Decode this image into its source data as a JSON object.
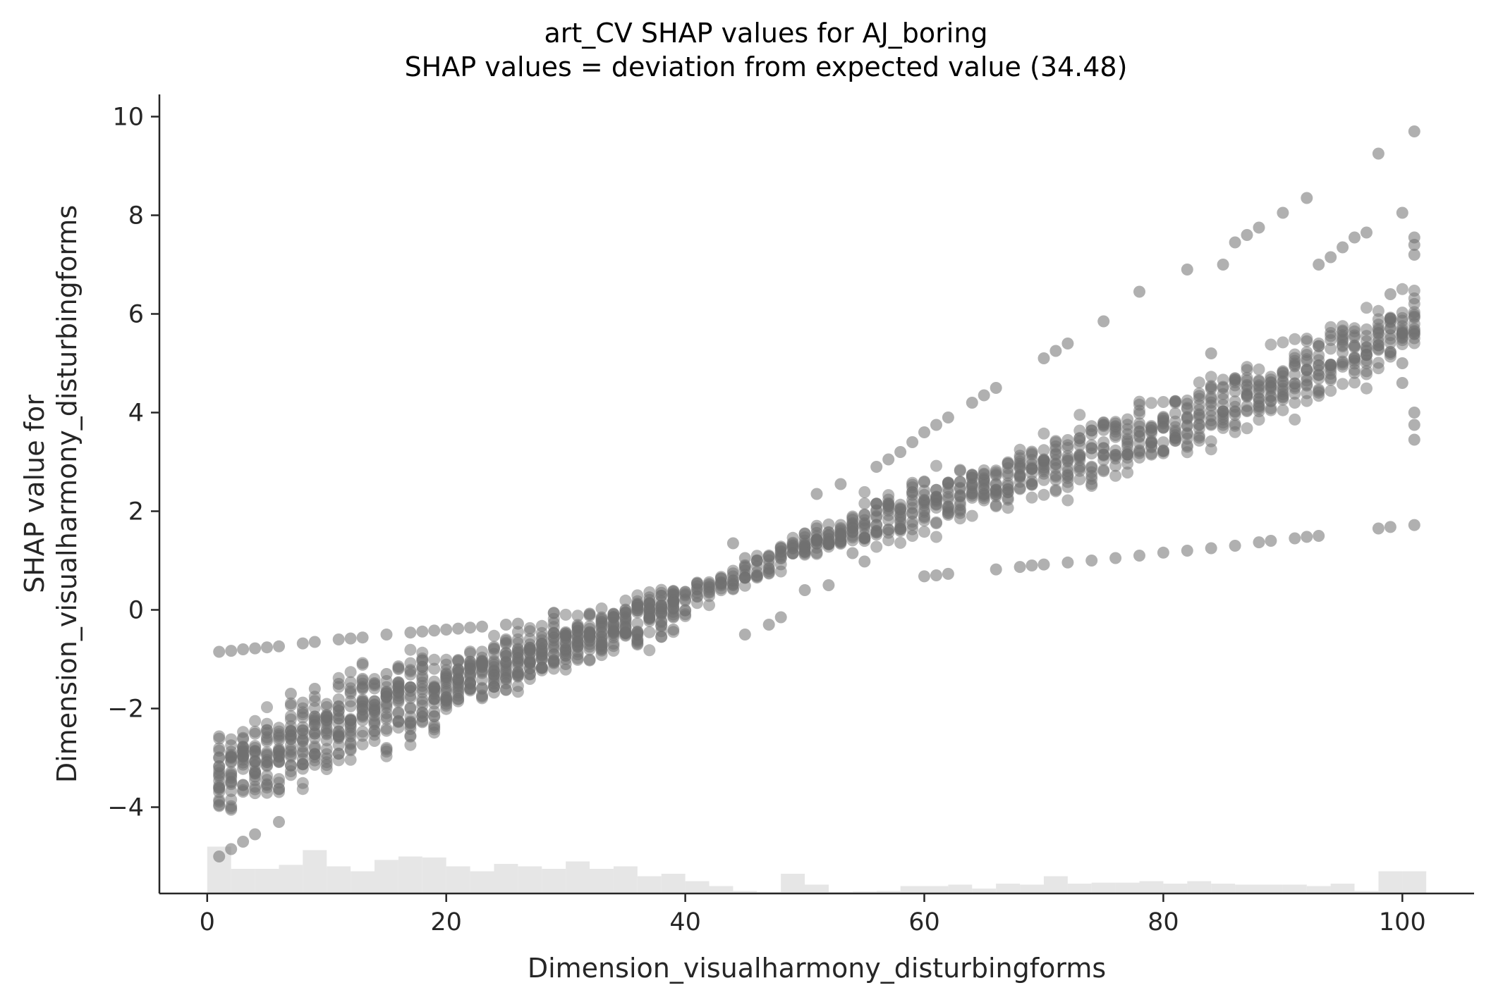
{
  "chart_data": {
    "type": "scatter",
    "title": "art_CV SHAP values for AJ_boring",
    "subtitle": "SHAP values = deviation from expected value (34.48)",
    "xlabel": "Dimension_visualharmony_disturbingforms",
    "ylabel_line1": "SHAP value for",
    "ylabel_line2": "Dimension_visualharmony_disturbingforms",
    "xlim": [
      -4,
      106
    ],
    "ylim": [
      -5.75,
      10.45
    ],
    "xticks": [
      0,
      20,
      40,
      60,
      80,
      100
    ],
    "xtick_labels": [
      "0",
      "20",
      "40",
      "60",
      "80",
      "100"
    ],
    "yticks": [
      -4,
      -2,
      0,
      2,
      4,
      6,
      8,
      10
    ],
    "ytick_labels": [
      "−4",
      "−2",
      "0",
      "2",
      "4",
      "6",
      "8",
      "10"
    ],
    "grid": false,
    "legend": "none",
    "point_color": "#707070",
    "histogram_color": "#e6e6e6",
    "axis_color": "#262626",
    "trend": {
      "main_band": [
        [
          1,
          -3.3
        ],
        [
          10,
          -2.4
        ],
        [
          20,
          -1.5
        ],
        [
          30,
          -0.7
        ],
        [
          40,
          0.2
        ],
        [
          50,
          1.3
        ],
        [
          60,
          2.1
        ],
        [
          70,
          2.9
        ],
        [
          80,
          3.7
        ],
        [
          90,
          4.6
        ],
        [
          101,
          5.9
        ]
      ],
      "band_spread": 0.9
    },
    "series": [
      {
        "values": [
          [
            1,
            -0.85
          ],
          [
            2,
            -0.83
          ],
          [
            3,
            -0.8
          ],
          [
            4,
            -0.78
          ],
          [
            5,
            -0.76
          ],
          [
            6,
            -0.74
          ],
          [
            8,
            -0.68
          ],
          [
            9,
            -0.65
          ],
          [
            11,
            -0.6
          ],
          [
            12,
            -0.58
          ],
          [
            13,
            -0.56
          ],
          [
            15,
            -0.5
          ],
          [
            17,
            -0.46
          ],
          [
            18,
            -0.44
          ],
          [
            19,
            -0.42
          ],
          [
            20,
            -0.4
          ],
          [
            21,
            -0.38
          ],
          [
            22,
            -0.36
          ],
          [
            23,
            -0.34
          ],
          [
            25,
            -0.3
          ],
          [
            26,
            -0.28
          ],
          [
            55,
            0.98
          ],
          [
            60,
            0.68
          ],
          [
            61,
            0.7
          ],
          [
            62,
            0.73
          ],
          [
            66,
            0.82
          ],
          [
            68,
            0.87
          ],
          [
            69,
            0.9
          ],
          [
            70,
            0.92
          ],
          [
            72,
            0.96
          ],
          [
            74,
            1.0
          ],
          [
            76,
            1.05
          ],
          [
            78,
            1.1
          ],
          [
            80,
            1.16
          ],
          [
            82,
            1.2
          ],
          [
            84,
            1.25
          ],
          [
            86,
            1.3
          ],
          [
            88,
            1.37
          ],
          [
            89,
            1.4
          ],
          [
            91,
            1.45
          ],
          [
            92,
            1.48
          ],
          [
            93,
            1.5
          ],
          [
            98,
            1.65
          ],
          [
            99,
            1.68
          ],
          [
            101,
            1.72
          ],
          [
            1,
            -5.0
          ],
          [
            2,
            -4.85
          ],
          [
            3,
            -4.7
          ],
          [
            4,
            -4.55
          ],
          [
            6,
            -4.3
          ],
          [
            7,
            -1.7
          ],
          [
            9,
            -1.6
          ],
          [
            11,
            -1.5
          ],
          [
            13,
            -1.4
          ],
          [
            15,
            -1.3
          ],
          [
            16,
            -1.2
          ],
          [
            44,
            1.35
          ],
          [
            45,
            1.05
          ],
          [
            48,
            1.25
          ],
          [
            50,
            1.55
          ],
          [
            51,
            2.35
          ],
          [
            53,
            2.55
          ],
          [
            54,
            1.15
          ],
          [
            56,
            2.9
          ],
          [
            57,
            3.05
          ],
          [
            58,
            3.2
          ],
          [
            59,
            3.4
          ],
          [
            60,
            3.6
          ],
          [
            61,
            3.75
          ],
          [
            62,
            3.9
          ],
          [
            64,
            4.2
          ],
          [
            65,
            4.35
          ],
          [
            66,
            4.5
          ],
          [
            70,
            5.1
          ],
          [
            71,
            5.25
          ],
          [
            72,
            5.4
          ],
          [
            75,
            5.85
          ],
          [
            78,
            6.45
          ],
          [
            82,
            6.9
          ],
          [
            84,
            5.2
          ],
          [
            85,
            7.0
          ],
          [
            86,
            7.45
          ],
          [
            87,
            7.6
          ],
          [
            88,
            7.75
          ],
          [
            90,
            8.05
          ],
          [
            92,
            8.35
          ],
          [
            93,
            7.0
          ],
          [
            94,
            7.15
          ],
          [
            95,
            7.35
          ],
          [
            96,
            7.55
          ],
          [
            97,
            7.65
          ],
          [
            98,
            9.25
          ],
          [
            100,
            8.05
          ],
          [
            101,
            9.7
          ],
          [
            101,
            7.55
          ],
          [
            101,
            7.4
          ],
          [
            101,
            7.2
          ],
          [
            45,
            -0.5
          ],
          [
            47,
            -0.3
          ],
          [
            48,
            -0.15
          ],
          [
            50,
            0.4
          ],
          [
            52,
            0.5
          ],
          [
            39,
            -0.4
          ],
          [
            36,
            -0.6
          ],
          [
            33,
            -0.8
          ],
          [
            30,
            -1.1
          ],
          [
            27,
            -1.3
          ],
          [
            101,
            3.45
          ],
          [
            101,
            3.75
          ],
          [
            101,
            4.0
          ],
          [
            100,
            4.6
          ],
          [
            100,
            5.0
          ],
          [
            99,
            6.4
          ]
        ]
      }
    ],
    "histogram": {
      "bins": [
        [
          1,
          0.95
        ],
        [
          3,
          0.5
        ],
        [
          5,
          0.5
        ],
        [
          7,
          0.58
        ],
        [
          9,
          0.88
        ],
        [
          11,
          0.55
        ],
        [
          13,
          0.45
        ],
        [
          15,
          0.68
        ],
        [
          17,
          0.75
        ],
        [
          19,
          0.73
        ],
        [
          21,
          0.55
        ],
        [
          23,
          0.45
        ],
        [
          25,
          0.6
        ],
        [
          27,
          0.55
        ],
        [
          29,
          0.5
        ],
        [
          31,
          0.65
        ],
        [
          33,
          0.5
        ],
        [
          35,
          0.55
        ],
        [
          37,
          0.35
        ],
        [
          39,
          0.4
        ],
        [
          41,
          0.25
        ],
        [
          43,
          0.15
        ],
        [
          45,
          0.05
        ],
        [
          47,
          0.03
        ],
        [
          49,
          0.4
        ],
        [
          51,
          0.18
        ],
        [
          53,
          0.03
        ],
        [
          55,
          0.04
        ],
        [
          57,
          0.05
        ],
        [
          59,
          0.15
        ],
        [
          61,
          0.15
        ],
        [
          63,
          0.18
        ],
        [
          65,
          0.1
        ],
        [
          67,
          0.2
        ],
        [
          69,
          0.18
        ],
        [
          71,
          0.35
        ],
        [
          73,
          0.2
        ],
        [
          75,
          0.22
        ],
        [
          77,
          0.22
        ],
        [
          79,
          0.25
        ],
        [
          81,
          0.2
        ],
        [
          83,
          0.25
        ],
        [
          85,
          0.2
        ],
        [
          87,
          0.18
        ],
        [
          89,
          0.18
        ],
        [
          91,
          0.18
        ],
        [
          93,
          0.15
        ],
        [
          95,
          0.2
        ],
        [
          97,
          0.05
        ],
        [
          99,
          0.45
        ],
        [
          101,
          0.45
        ]
      ]
    }
  }
}
